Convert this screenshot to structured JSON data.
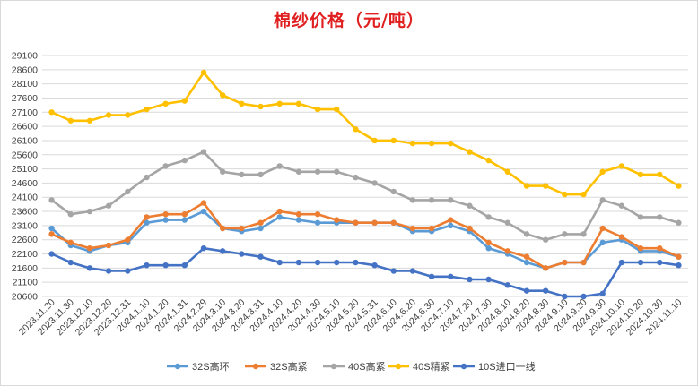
{
  "chart_data": {
    "type": "line",
    "title": "棉纱价格（元/吨）",
    "xlabel": "",
    "ylabel": "",
    "ylim": [
      20600,
      29100
    ],
    "yticks": [
      20600,
      21100,
      21600,
      22100,
      22600,
      23100,
      23600,
      24100,
      24600,
      25100,
      25600,
      26100,
      26600,
      27100,
      27600,
      28100,
      28600,
      29100
    ],
    "grid": true,
    "legend": "bottom",
    "categories": [
      "2023.11.20",
      "2023.11.30",
      "2023.12.10",
      "2023.12.20",
      "2023.12.31",
      "2024.1.10",
      "2024.1.20",
      "2024.1.31",
      "2024.2.29",
      "2024.3.10",
      "2024.3.20",
      "2024.3.31",
      "2024.4.10",
      "2024.4.20",
      "2024.4.30",
      "2024.5.10",
      "2024.5.20",
      "2024.5.31",
      "2024.6.10",
      "2024.6.20",
      "2024.6.30",
      "2024.7.10",
      "2024.7.20",
      "2024.7.30",
      "2024.8.10",
      "2024.8.20",
      "2024.8.30",
      "2024.9.10",
      "2024.9.20",
      "2024.9.30",
      "2024.10.10",
      "2024.10.20",
      "2024.10.30",
      "2024.11.10"
    ],
    "series": [
      {
        "name": "32S高环",
        "color": "#5b9bd5",
        "values": [
          23000,
          22400,
          22200,
          22400,
          22500,
          23200,
          23300,
          23300,
          23600,
          23000,
          22900,
          23000,
          23400,
          23300,
          23200,
          23200,
          23200,
          23200,
          23200,
          22900,
          22900,
          23100,
          22900,
          22300,
          22100,
          21800,
          21600,
          21800,
          21800,
          22500,
          22600,
          22200,
          22200,
          22000
        ]
      },
      {
        "name": "32S高紧",
        "color": "#ed7d31",
        "values": [
          22800,
          22500,
          22300,
          22400,
          22600,
          23400,
          23500,
          23500,
          23900,
          23000,
          23000,
          23200,
          23600,
          23500,
          23500,
          23300,
          23200,
          23200,
          23200,
          23000,
          23000,
          23300,
          23000,
          22500,
          22200,
          22000,
          21600,
          21800,
          21800,
          23000,
          22700,
          22300,
          22300,
          22000
        ]
      },
      {
        "name": "40S高紧",
        "color": "#a5a5a5",
        "values": [
          24000,
          23500,
          23600,
          23800,
          24300,
          24800,
          25200,
          25400,
          25700,
          25000,
          24900,
          24900,
          25200,
          25000,
          25000,
          25000,
          24800,
          24600,
          24300,
          24000,
          24000,
          24000,
          23800,
          23400,
          23200,
          22800,
          22600,
          22800,
          22800,
          24000,
          23800,
          23400,
          23400,
          23200
        ]
      },
      {
        "name": "40S精紧",
        "color": "#ffc000",
        "values": [
          27100,
          26800,
          26800,
          27000,
          27000,
          27200,
          27400,
          27500,
          28500,
          27700,
          27400,
          27300,
          27400,
          27400,
          27200,
          27200,
          26500,
          26100,
          26100,
          26000,
          26000,
          26000,
          25700,
          25400,
          25000,
          24500,
          24500,
          24200,
          24200,
          25000,
          25200,
          24900,
          24900,
          24500
        ]
      },
      {
        "name": "10S进口一线",
        "color": "#4472c4",
        "values": [
          22100,
          21800,
          21600,
          21500,
          21500,
          21700,
          21700,
          21700,
          22300,
          22200,
          22100,
          22000,
          21800,
          21800,
          21800,
          21800,
          21800,
          21700,
          21500,
          21500,
          21300,
          21300,
          21200,
          21200,
          21000,
          20800,
          20800,
          20600,
          20600,
          20700,
          21800,
          21800,
          21800,
          21700
        ]
      }
    ]
  }
}
